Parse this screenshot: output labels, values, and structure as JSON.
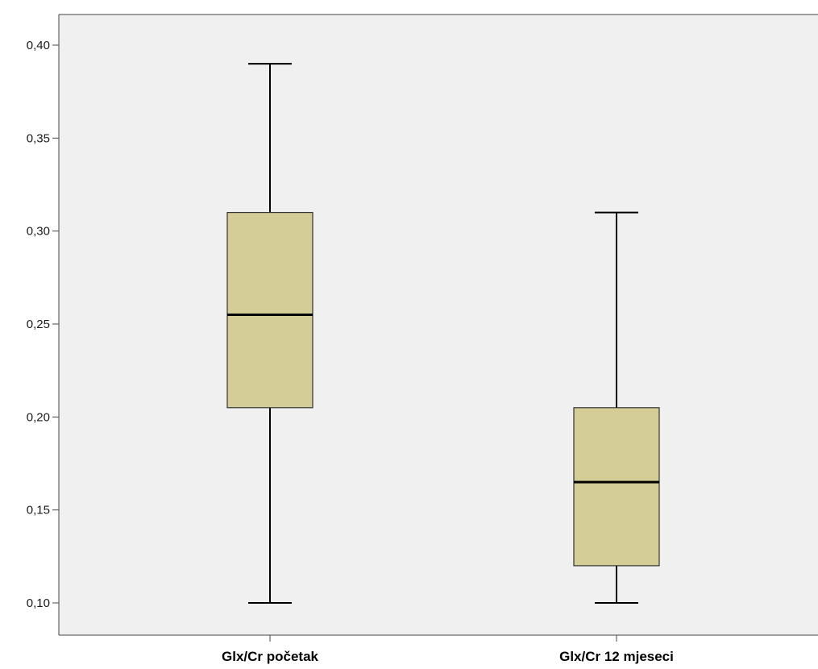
{
  "chart_data": {
    "type": "boxplot",
    "title": "",
    "xlabel": "",
    "ylabel": "",
    "ylim": [
      0.09,
      0.42
    ],
    "y_ticks": [
      0.1,
      0.15,
      0.2,
      0.25,
      0.3,
      0.35,
      0.4
    ],
    "y_tick_labels": [
      "0,10",
      "0,15",
      "0,20",
      "0,25",
      "0,30",
      "0,35",
      "0,40"
    ],
    "categories": [
      "Glx/Cr početak",
      "Glx/Cr 12 mjeseci"
    ],
    "boxes": [
      {
        "whisker_low": 0.1,
        "q1": 0.205,
        "median": 0.255,
        "q3": 0.31,
        "whisker_high": 0.39
      },
      {
        "whisker_low": 0.1,
        "q1": 0.12,
        "median": 0.165,
        "q3": 0.205,
        "whisker_high": 0.31
      }
    ],
    "grid": false,
    "legend": "none",
    "colors": {
      "box_fill": "#d4cd97",
      "plot_background": "#f0f0f0",
      "line": "#000000"
    }
  }
}
